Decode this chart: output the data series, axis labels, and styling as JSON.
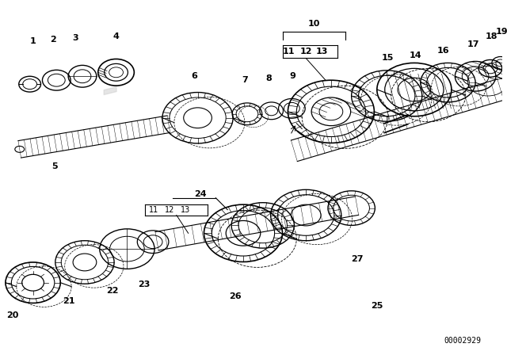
{
  "background_color": "#ffffff",
  "diagram_id": "00002929",
  "figsize": [
    6.4,
    4.48
  ],
  "dpi": 100,
  "text_color": "#000000",
  "font_size": 8,
  "id_font_size": 7
}
